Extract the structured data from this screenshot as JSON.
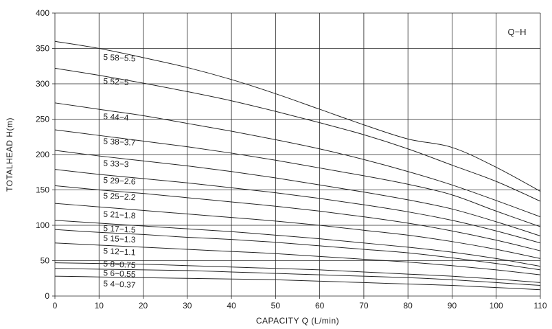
{
  "chart_data": {
    "type": "line",
    "legend_box_label": "Q−H",
    "xlabel": "CAPACITY  Q (L/min)",
    "ylabel": "TOTALHEAD  H(m)",
    "xlim": [
      0,
      110
    ],
    "ylim": [
      0,
      400
    ],
    "x_ticks": [
      0,
      10,
      20,
      30,
      40,
      50,
      60,
      70,
      80,
      90,
      100,
      110
    ],
    "y_ticks": [
      0,
      50,
      100,
      150,
      200,
      250,
      300,
      350,
      400
    ],
    "grid": true,
    "x": [
      0,
      10,
      20,
      30,
      40,
      50,
      60,
      70,
      80,
      90,
      100,
      110
    ],
    "series": [
      {
        "name": "5 58−5.5",
        "label_at": [
          10,
          334
        ],
        "values": [
          360,
          350,
          337,
          323,
          306,
          286,
          264,
          242,
          222,
          210,
          182,
          148
        ]
      },
      {
        "name": "5 52−5",
        "label_at": [
          10,
          300
        ],
        "values": [
          322,
          312,
          301,
          289,
          276,
          261,
          245,
          228,
          208,
          185,
          162,
          134
        ]
      },
      {
        "name": "5 44−4",
        "label_at": [
          10,
          250
        ],
        "values": [
          273,
          264,
          255,
          244,
          233,
          221,
          208,
          193,
          176,
          157,
          135,
          112
        ]
      },
      {
        "name": "5 38−3.7",
        "label_at": [
          10,
          215
        ],
        "values": [
          235,
          227,
          219,
          211,
          202,
          192,
          181,
          170,
          158,
          143,
          120,
          98
        ]
      },
      {
        "name": "5 33−3",
        "label_at": [
          10,
          184
        ],
        "values": [
          206,
          198,
          191,
          184,
          176,
          167,
          157,
          147,
          136,
          123,
          105,
          85
        ]
      },
      {
        "name": "5 29−2.6",
        "label_at": [
          10,
          160
        ],
        "values": [
          179,
          172,
          166,
          160,
          153,
          146,
          138,
          129,
          119,
          107,
          92,
          75
        ]
      },
      {
        "name": "5 25−2.2",
        "label_at": [
          10,
          138
        ],
        "values": [
          156,
          150,
          145,
          139,
          133,
          127,
          120,
          112,
          103,
          92,
          79,
          64
        ]
      },
      {
        "name": "5 21−1.8",
        "label_at": [
          10,
          112
        ],
        "values": [
          131,
          126,
          121,
          116,
          111,
          106,
          100,
          93,
          86,
          77,
          66,
          53
        ]
      },
      {
        "name": "5 17−1.5",
        "label_at": [
          10,
          92
        ],
        "values": [
          107,
          103,
          99,
          95,
          91,
          86,
          81,
          75,
          69,
          62,
          53,
          42
        ]
      },
      {
        "name": "5 15−1.3",
        "label_at": [
          10,
          78
        ],
        "values": [
          94,
          90,
          87,
          83,
          80,
          76,
          71,
          66,
          61,
          54,
          46,
          37
        ]
      },
      {
        "name": "5 12−1.1",
        "label_at": [
          10,
          60
        ],
        "values": [
          75,
          72,
          69,
          66,
          63,
          60,
          56,
          52,
          48,
          43,
          37,
          30
        ]
      },
      {
        "name": "5 8−0.75",
        "label_at": [
          10,
          42
        ],
        "values": [
          47,
          46,
          45,
          43,
          41,
          39,
          37,
          34,
          31,
          28,
          24,
          19
        ]
      },
      {
        "name": "5 6−0.55",
        "label_at": [
          10,
          29
        ],
        "values": [
          39,
          38,
          37,
          36,
          34,
          32,
          30,
          28,
          26,
          23,
          19,
          15
        ]
      },
      {
        "name": "5 4−0.37",
        "label_at": [
          10,
          14
        ],
        "values": [
          28,
          27,
          26,
          25,
          24,
          23,
          21,
          19,
          17,
          15,
          12,
          9
        ]
      }
    ]
  }
}
